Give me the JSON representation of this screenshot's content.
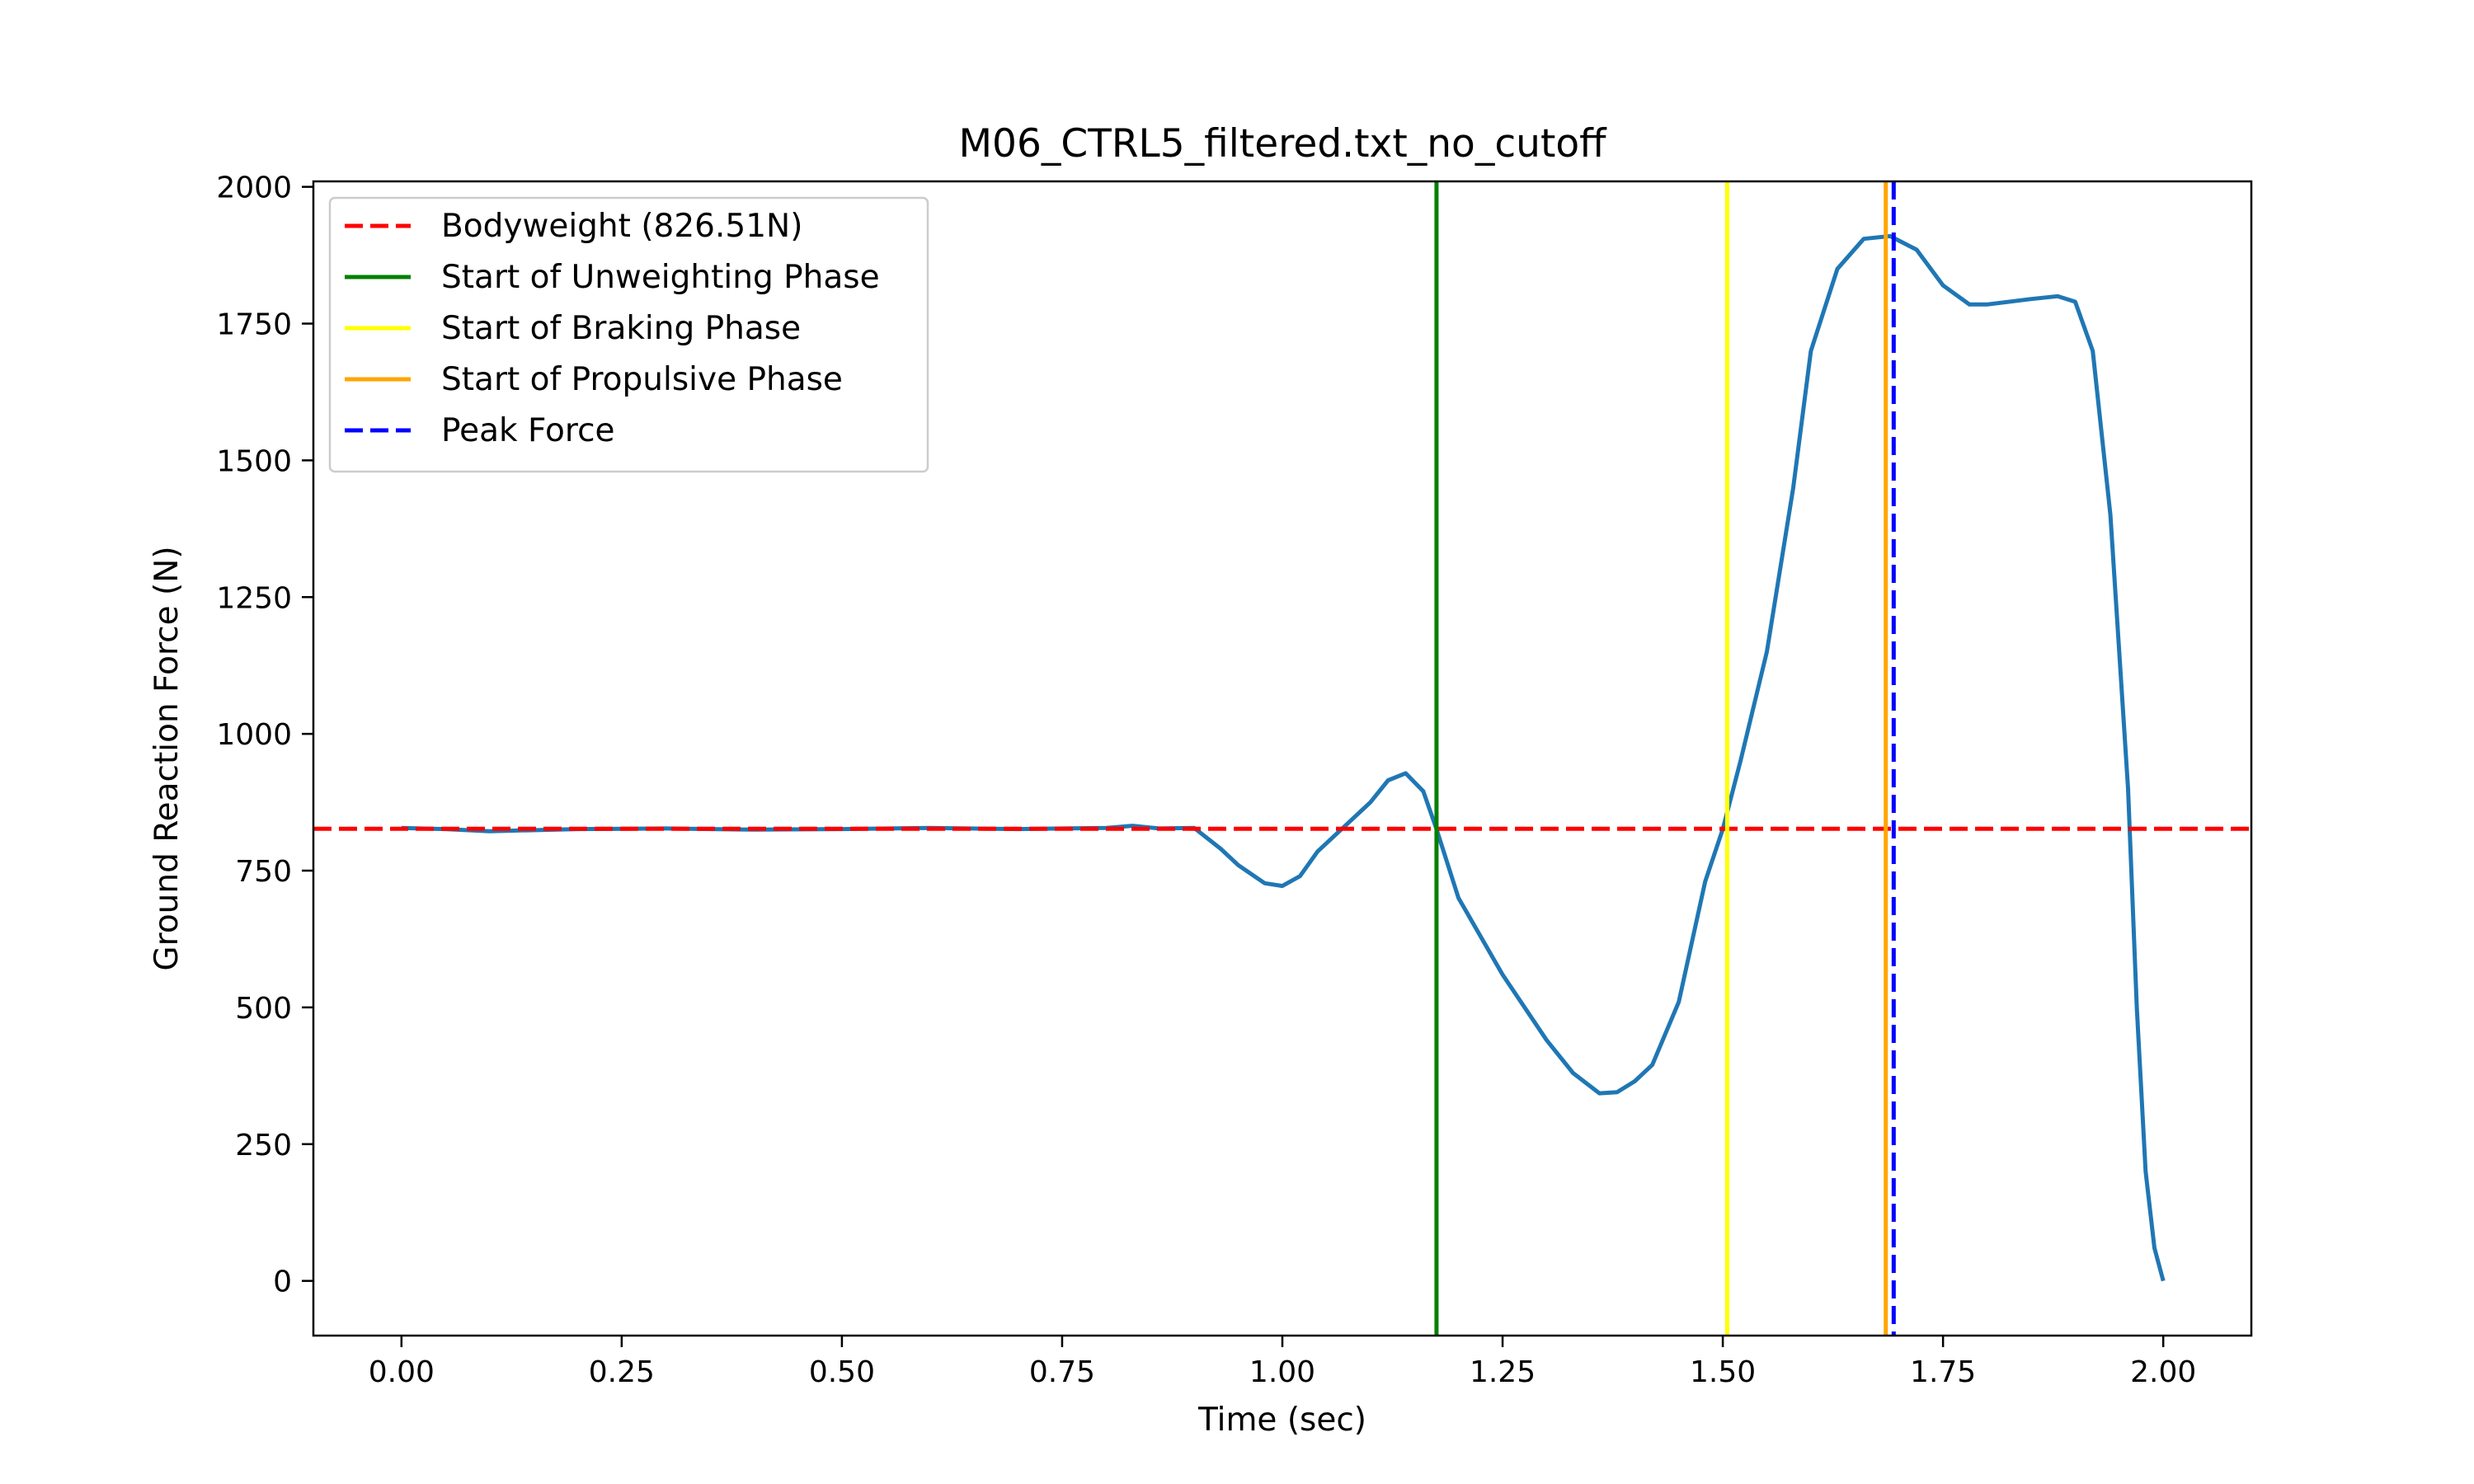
{
  "chart_data": {
    "type": "line",
    "title": "M06_CTRL5_filtered.txt_no_cutoff",
    "xlabel": "Time (sec)",
    "ylabel": "Ground Reaction Force (N)",
    "xlim": [
      -0.1,
      2.1
    ],
    "ylim": [
      -100,
      2010
    ],
    "xticks": [
      0.0,
      0.25,
      0.5,
      0.75,
      1.0,
      1.25,
      1.5,
      1.75,
      2.0
    ],
    "xtick_labels": [
      "0.00",
      "0.25",
      "0.50",
      "0.75",
      "1.00",
      "1.25",
      "1.50",
      "1.75",
      "2.00"
    ],
    "yticks": [
      0,
      250,
      500,
      750,
      1000,
      1250,
      1500,
      1750,
      2000
    ],
    "ytick_labels": [
      "0",
      "250",
      "500",
      "750",
      "1000",
      "1250",
      "1500",
      "1750",
      "2000"
    ],
    "grid": false,
    "legend_position": "top-left",
    "series": [
      {
        "name": "",
        "color": "#1f77b4",
        "x": [
          0.0,
          0.05,
          0.1,
          0.2,
          0.3,
          0.4,
          0.5,
          0.6,
          0.7,
          0.8,
          0.83,
          0.86,
          0.9,
          0.93,
          0.95,
          0.98,
          1.0,
          1.02,
          1.04,
          1.07,
          1.1,
          1.12,
          1.14,
          1.16,
          1.175,
          1.2,
          1.25,
          1.3,
          1.33,
          1.36,
          1.38,
          1.4,
          1.42,
          1.45,
          1.48,
          1.5,
          1.52,
          1.55,
          1.58,
          1.6,
          1.63,
          1.66,
          1.69,
          1.72,
          1.75,
          1.78,
          1.8,
          1.85,
          1.88,
          1.9,
          1.92,
          1.94,
          1.96,
          1.97,
          1.98,
          1.99,
          2.0
        ],
        "y": [
          828,
          826,
          822,
          826,
          827,
          825,
          826,
          828,
          826,
          828,
          832,
          827,
          828,
          790,
          760,
          727,
          722,
          740,
          785,
          830,
          875,
          915,
          928,
          895,
          826,
          700,
          560,
          440,
          380,
          343,
          345,
          365,
          395,
          510,
          730,
          826,
          950,
          1150,
          1450,
          1700,
          1850,
          1905,
          1910,
          1885,
          1820,
          1785,
          1785,
          1795,
          1800,
          1790,
          1700,
          1400,
          900,
          500,
          200,
          60,
          0
        ]
      }
    ],
    "reference_lines": [
      {
        "name": "Bodyweight (826.51N)",
        "orientation": "horizontal",
        "value": 826.51,
        "color": "#ff0000",
        "style": "dashed"
      },
      {
        "name": "Start of Unweighting Phase",
        "orientation": "vertical",
        "value": 1.175,
        "color": "#008000",
        "style": "solid"
      },
      {
        "name": "Start of Braking Phase",
        "orientation": "vertical",
        "value": 1.505,
        "color": "#ffff00",
        "style": "solid"
      },
      {
        "name": "Start of Propulsive Phase",
        "orientation": "vertical",
        "value": 1.685,
        "color": "#ffa500",
        "style": "solid"
      },
      {
        "name": "Peak Force",
        "orientation": "vertical",
        "value": 1.694,
        "color": "#0000ff",
        "style": "dashed"
      }
    ]
  }
}
